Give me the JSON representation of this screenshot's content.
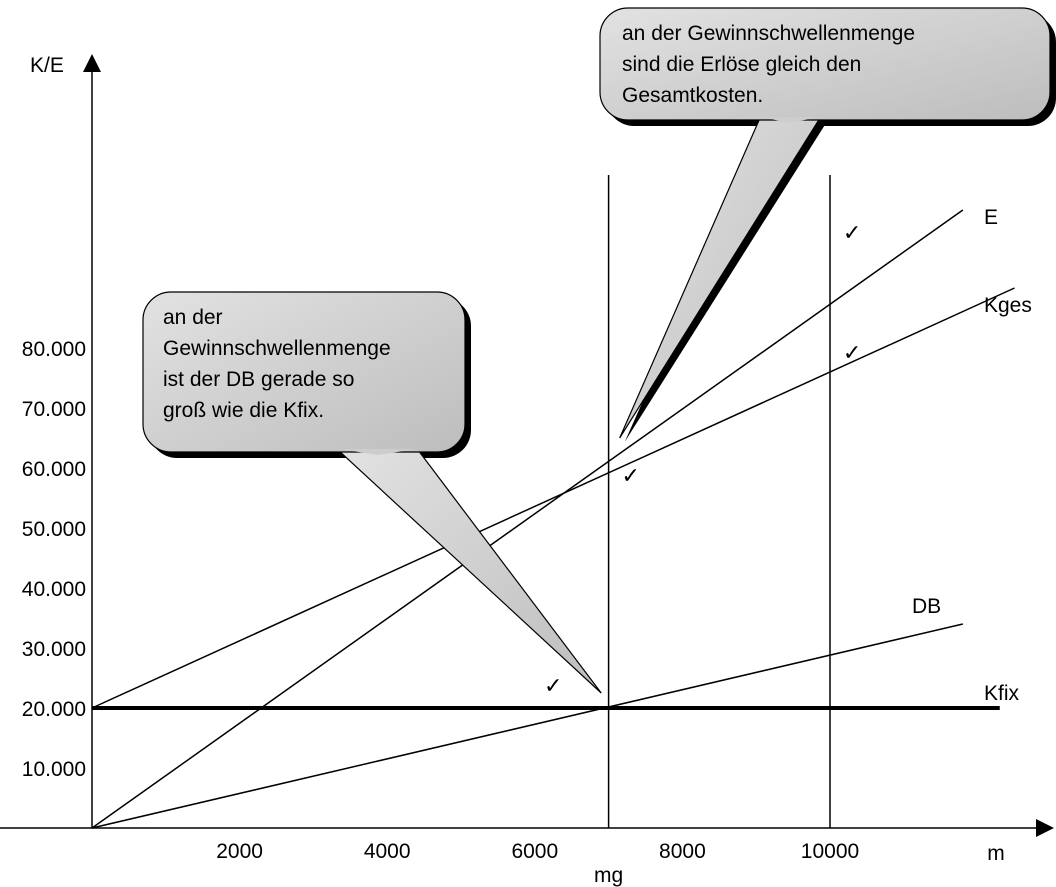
{
  "chart_data": {
    "type": "line",
    "xlabel": "m",
    "ylabel": "K/E",
    "xlim": [
      0,
      11500
    ],
    "ylim": [
      0,
      95000
    ],
    "x_ticks": [
      2000,
      4000,
      6000,
      8000,
      10000
    ],
    "x_tick_labels": [
      "2000",
      "4000",
      "6000",
      "8000",
      "10000"
    ],
    "y_ticks": [
      10000,
      20000,
      30000,
      40000,
      50000,
      60000,
      70000,
      80000
    ],
    "y_tick_labels": [
      "10.000",
      "20.000",
      "30.000",
      "40.000",
      "50.000",
      "60.000",
      "70.000",
      "80.000"
    ],
    "breakeven_label": "mg",
    "reference_lines_x": [
      7000,
      10000
    ],
    "series": [
      {
        "name": "E",
        "points": [
          [
            0,
            0
          ],
          [
            11800,
            103000
          ]
        ],
        "line_width": 1.5
      },
      {
        "name": "Kges",
        "points": [
          [
            0,
            20000
          ],
          [
            12500,
            90000
          ]
        ],
        "line_width": 1.5
      },
      {
        "name": "DB",
        "points": [
          [
            0,
            0
          ],
          [
            11800,
            34000
          ]
        ],
        "line_width": 1.5
      },
      {
        "name": "Kfix",
        "points": [
          [
            0,
            20000
          ],
          [
            12300,
            20000
          ]
        ],
        "line_width": 4
      }
    ],
    "checkmarks": [
      {
        "symbol": "✓",
        "x": 10300,
        "y": 98000
      },
      {
        "symbol": "✓",
        "x": 10300,
        "y": 78000
      },
      {
        "symbol": "✓",
        "x": 7300,
        "y": 57500
      },
      {
        "symbol": "✓",
        "x": 6250,
        "y": 22500
      }
    ],
    "callouts": [
      {
        "lines": [
          "an der Gewinnschwellenmenge",
          "sind die Erlöse gleich den",
          "Gesamtkosten."
        ],
        "pointer_to": [
          7150,
          65000
        ]
      },
      {
        "lines": [
          "an der",
          "Gewinnschwellenmenge",
          "ist der DB gerade so",
          "groß wie die Kfix."
        ],
        "pointer_to": [
          6900,
          22500
        ]
      }
    ]
  }
}
